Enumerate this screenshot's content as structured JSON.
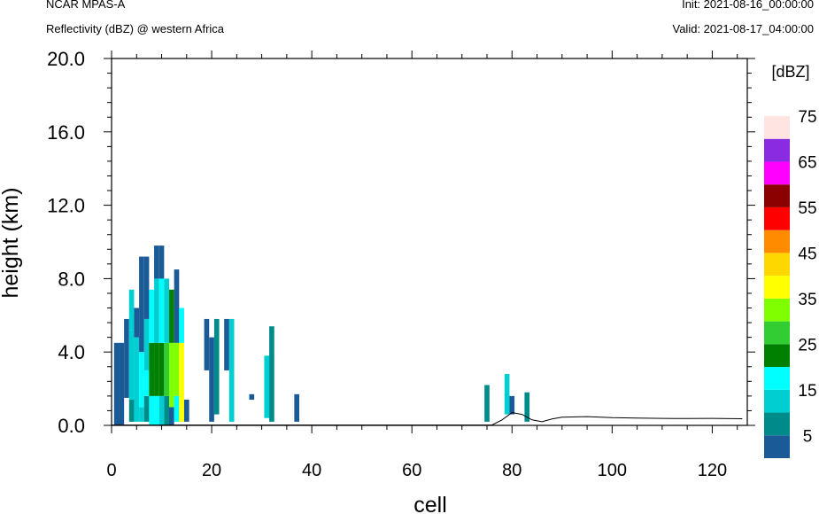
{
  "header": {
    "model": "NCAR MPAS-A",
    "field": "Reflectivity (dBZ) @ western Africa",
    "init": "Init: 2021-08-16_00:00:00",
    "valid": "Valid: 2021-08-17_04:00:00"
  },
  "chart_data": {
    "type": "heatmap",
    "xlabel": "cell",
    "ylabel": "height (km)",
    "xlim": [
      0,
      127
    ],
    "ylim": [
      0,
      20
    ],
    "x_ticks": [
      "0",
      "20",
      "40",
      "60",
      "80",
      "100",
      "120"
    ],
    "y_ticks": [
      "0.0",
      "4.0",
      "8.0",
      "12.0",
      "16.0",
      "20.0"
    ],
    "colorbar": {
      "units": "[dBZ]",
      "levels": [
        0,
        5,
        10,
        15,
        20,
        25,
        30,
        35,
        40,
        45,
        50,
        55,
        60,
        65,
        70,
        75
      ],
      "tick_labels": [
        "5",
        "15",
        "25",
        "35",
        "45",
        "55",
        "65",
        "75"
      ],
      "colors": [
        "#1a5a96",
        "#008b8b",
        "#00ced1",
        "#00ffff",
        "#008000",
        "#32cd32",
        "#7fff00",
        "#ffff00",
        "#ffd700",
        "#ff8c00",
        "#ff0000",
        "#8b0000",
        "#ff00ff",
        "#8a2be2",
        "#ffe4e1"
      ]
    },
    "columns": [
      {
        "x": 1,
        "segs": [
          [
            0,
            4.5,
            0
          ]
        ]
      },
      {
        "x": 2,
        "segs": [
          [
            0,
            4.5,
            0
          ]
        ]
      },
      {
        "x": 3,
        "segs": [
          [
            1.5,
            5.8,
            0
          ]
        ]
      },
      {
        "x": 4,
        "segs": [
          [
            0.2,
            1.4,
            1
          ],
          [
            1.4,
            5.2,
            2
          ],
          [
            5.2,
            7.4,
            2
          ]
        ]
      },
      {
        "x": 5,
        "segs": [
          [
            0.2,
            1.4,
            2
          ],
          [
            1.4,
            4.8,
            2
          ],
          [
            4.8,
            6.4,
            0
          ]
        ]
      },
      {
        "x": 6,
        "segs": [
          [
            0.2,
            1.0,
            2
          ],
          [
            1.0,
            4.0,
            3
          ],
          [
            4.0,
            9.2,
            0
          ]
        ]
      },
      {
        "x": 7,
        "segs": [
          [
            0.2,
            1.6,
            1
          ],
          [
            1.6,
            3.0,
            3
          ],
          [
            3.0,
            5.8,
            2
          ],
          [
            5.8,
            9.2,
            0
          ]
        ]
      },
      {
        "x": 8,
        "segs": [
          [
            0,
            1.6,
            3
          ],
          [
            1.6,
            4.5,
            4
          ],
          [
            4.5,
            7.4,
            3
          ]
        ]
      },
      {
        "x": 9,
        "segs": [
          [
            0,
            1.6,
            3
          ],
          [
            1.6,
            4.5,
            4
          ],
          [
            4.5,
            8.0,
            2
          ],
          [
            8.0,
            9.8,
            0
          ]
        ]
      },
      {
        "x": 10,
        "segs": [
          [
            0,
            1.6,
            2
          ],
          [
            1.6,
            4.5,
            4
          ],
          [
            4.5,
            8.0,
            3
          ],
          [
            8.0,
            9.8,
            0
          ]
        ]
      },
      {
        "x": 11,
        "segs": [
          [
            0,
            1.6,
            1
          ],
          [
            1.6,
            4.5,
            5
          ],
          [
            4.5,
            8.0,
            2
          ]
        ]
      },
      {
        "x": 12,
        "segs": [
          [
            0,
            1.0,
            0
          ],
          [
            1.0,
            4.5,
            6
          ],
          [
            4.5,
            7.4,
            4
          ]
        ]
      },
      {
        "x": 13,
        "segs": [
          [
            0.2,
            1.6,
            3
          ],
          [
            1.6,
            4.5,
            6
          ],
          [
            4.5,
            8.5,
            0
          ]
        ]
      },
      {
        "x": 14,
        "segs": [
          [
            0.2,
            1.0,
            7
          ],
          [
            1.0,
            4.5,
            7
          ],
          [
            4.5,
            6.4,
            3
          ]
        ]
      },
      {
        "x": 15,
        "segs": [
          [
            0.2,
            1.4,
            0
          ]
        ]
      },
      {
        "x": 19,
        "segs": [
          [
            3.0,
            5.8,
            0
          ]
        ]
      },
      {
        "x": 20,
        "segs": [
          [
            0.2,
            4.8,
            0
          ]
        ]
      },
      {
        "x": 21,
        "segs": [
          [
            0.6,
            5.8,
            1
          ]
        ]
      },
      {
        "x": 23,
        "segs": [
          [
            3.0,
            5.8,
            0
          ]
        ]
      },
      {
        "x": 24,
        "segs": [
          [
            0.2,
            5.8,
            2
          ]
        ]
      },
      {
        "x": 28,
        "segs": [
          [
            1.4,
            1.7,
            0
          ]
        ]
      },
      {
        "x": 31,
        "segs": [
          [
            0.4,
            3.8,
            2
          ]
        ]
      },
      {
        "x": 32,
        "segs": [
          [
            0.2,
            5.4,
            1
          ]
        ]
      },
      {
        "x": 37,
        "segs": [
          [
            0.2,
            1.7,
            0
          ]
        ]
      },
      {
        "x": 75,
        "segs": [
          [
            0.2,
            2.2,
            1
          ]
        ]
      },
      {
        "x": 79,
        "segs": [
          [
            0.6,
            2.8,
            2
          ]
        ]
      },
      {
        "x": 80,
        "segs": [
          [
            0.6,
            1.6,
            0
          ]
        ]
      },
      {
        "x": 83,
        "segs": [
          [
            0.2,
            1.8,
            1
          ]
        ]
      }
    ],
    "terrain": [
      [
        0,
        0.02
      ],
      [
        76,
        0.02
      ],
      [
        78,
        0.3
      ],
      [
        80,
        0.7
      ],
      [
        82,
        0.6
      ],
      [
        84,
        0.3
      ],
      [
        86,
        0.2
      ],
      [
        88,
        0.35
      ],
      [
        90,
        0.45
      ],
      [
        95,
        0.48
      ],
      [
        100,
        0.42
      ],
      [
        105,
        0.4
      ],
      [
        110,
        0.38
      ],
      [
        115,
        0.37
      ],
      [
        120,
        0.38
      ],
      [
        126,
        0.36
      ]
    ]
  }
}
